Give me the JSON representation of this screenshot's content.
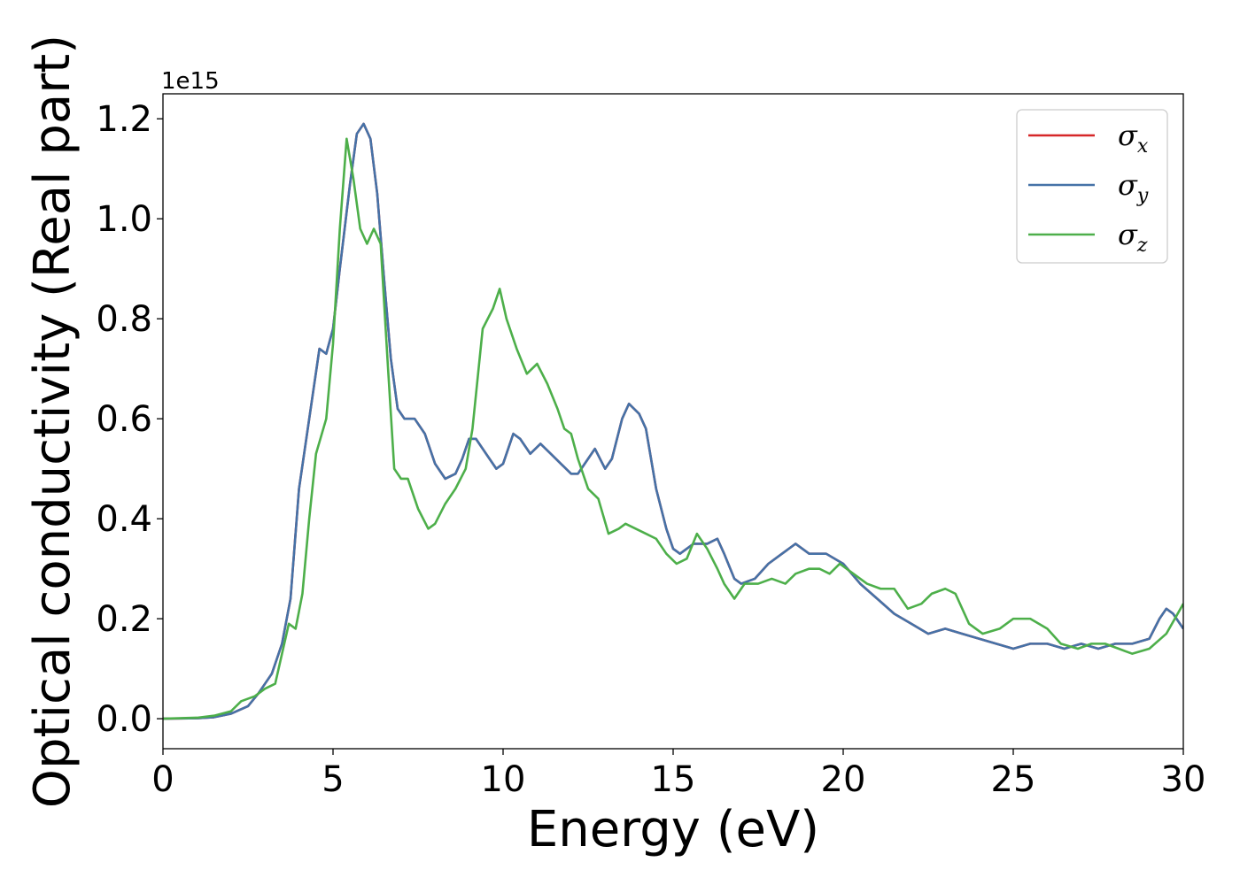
{
  "chart_data": {
    "type": "line",
    "title": "",
    "xlabel": "Energy (eV)",
    "ylabel": "Optical conductivity (Real part)",
    "y_offset_label": "1e15",
    "xlim": [
      0,
      30
    ],
    "ylim": [
      -0.06,
      1.25
    ],
    "x_ticks": [
      0,
      5,
      10,
      15,
      20,
      25,
      30
    ],
    "x_tick_labels": [
      "0",
      "5",
      "10",
      "15",
      "20",
      "25",
      "30"
    ],
    "y_ticks": [
      0.0,
      0.2,
      0.4,
      0.6,
      0.8,
      1.0,
      1.2
    ],
    "y_tick_labels": [
      "0.0",
      "0.2",
      "0.4",
      "0.6",
      "0.8",
      "1.0",
      "1.2"
    ],
    "grid": false,
    "legend_position": "top-right",
    "series": [
      {
        "name": "σx",
        "legend_base": "σ",
        "legend_sub": "x",
        "color": "#d62728",
        "points": [
          [
            0,
            0
          ],
          [
            1,
            0.001
          ],
          [
            1.5,
            0.003
          ],
          [
            2,
            0.01
          ],
          [
            2.5,
            0.025
          ],
          [
            2.8,
            0.05
          ],
          [
            3,
            0.07
          ],
          [
            3.2,
            0.09
          ],
          [
            3.5,
            0.15
          ],
          [
            3.75,
            0.24
          ],
          [
            4,
            0.46
          ],
          [
            4.3,
            0.6
          ],
          [
            4.6,
            0.74
          ],
          [
            4.8,
            0.73
          ],
          [
            5,
            0.78
          ],
          [
            5.2,
            0.9
          ],
          [
            5.5,
            1.07
          ],
          [
            5.7,
            1.17
          ],
          [
            5.9,
            1.19
          ],
          [
            6.1,
            1.16
          ],
          [
            6.3,
            1.05
          ],
          [
            6.5,
            0.88
          ],
          [
            6.7,
            0.72
          ],
          [
            6.9,
            0.62
          ],
          [
            7.1,
            0.6
          ],
          [
            7.4,
            0.6
          ],
          [
            7.7,
            0.57
          ],
          [
            8,
            0.51
          ],
          [
            8.3,
            0.48
          ],
          [
            8.6,
            0.49
          ],
          [
            8.8,
            0.52
          ],
          [
            9,
            0.56
          ],
          [
            9.2,
            0.56
          ],
          [
            9.5,
            0.53
          ],
          [
            9.8,
            0.5
          ],
          [
            10,
            0.51
          ],
          [
            10.3,
            0.57
          ],
          [
            10.5,
            0.56
          ],
          [
            10.8,
            0.53
          ],
          [
            11.1,
            0.55
          ],
          [
            11.4,
            0.53
          ],
          [
            11.7,
            0.51
          ],
          [
            12,
            0.49
          ],
          [
            12.2,
            0.49
          ],
          [
            12.5,
            0.52
          ],
          [
            12.7,
            0.54
          ],
          [
            13,
            0.5
          ],
          [
            13.2,
            0.52
          ],
          [
            13.5,
            0.6
          ],
          [
            13.7,
            0.63
          ],
          [
            14,
            0.61
          ],
          [
            14.2,
            0.58
          ],
          [
            14.5,
            0.46
          ],
          [
            14.8,
            0.38
          ],
          [
            15,
            0.34
          ],
          [
            15.2,
            0.33
          ],
          [
            15.6,
            0.35
          ],
          [
            16,
            0.35
          ],
          [
            16.3,
            0.36
          ],
          [
            16.5,
            0.33
          ],
          [
            16.8,
            0.28
          ],
          [
            17,
            0.27
          ],
          [
            17.4,
            0.28
          ],
          [
            17.8,
            0.31
          ],
          [
            18.2,
            0.33
          ],
          [
            18.6,
            0.35
          ],
          [
            19,
            0.33
          ],
          [
            19.5,
            0.33
          ],
          [
            20,
            0.31
          ],
          [
            20.5,
            0.27
          ],
          [
            21,
            0.24
          ],
          [
            21.5,
            0.21
          ],
          [
            22,
            0.19
          ],
          [
            22.5,
            0.17
          ],
          [
            23,
            0.18
          ],
          [
            23.5,
            0.17
          ],
          [
            24,
            0.16
          ],
          [
            24.5,
            0.15
          ],
          [
            25,
            0.14
          ],
          [
            25.5,
            0.15
          ],
          [
            26,
            0.15
          ],
          [
            26.5,
            0.14
          ],
          [
            27,
            0.15
          ],
          [
            27.5,
            0.14
          ],
          [
            28,
            0.15
          ],
          [
            28.5,
            0.15
          ],
          [
            29,
            0.16
          ],
          [
            29.3,
            0.2
          ],
          [
            29.5,
            0.22
          ],
          [
            29.7,
            0.21
          ],
          [
            30,
            0.18
          ]
        ]
      },
      {
        "name": "σy",
        "legend_base": "σ",
        "legend_sub": "y",
        "color": "#4572a7",
        "points": [
          [
            0,
            0
          ],
          [
            1,
            0.001
          ],
          [
            1.5,
            0.003
          ],
          [
            2,
            0.01
          ],
          [
            2.5,
            0.025
          ],
          [
            2.8,
            0.05
          ],
          [
            3,
            0.07
          ],
          [
            3.2,
            0.09
          ],
          [
            3.5,
            0.15
          ],
          [
            3.75,
            0.24
          ],
          [
            4,
            0.46
          ],
          [
            4.3,
            0.6
          ],
          [
            4.6,
            0.74
          ],
          [
            4.8,
            0.73
          ],
          [
            5,
            0.78
          ],
          [
            5.2,
            0.9
          ],
          [
            5.5,
            1.07
          ],
          [
            5.7,
            1.17
          ],
          [
            5.9,
            1.19
          ],
          [
            6.1,
            1.16
          ],
          [
            6.3,
            1.05
          ],
          [
            6.5,
            0.88
          ],
          [
            6.7,
            0.72
          ],
          [
            6.9,
            0.62
          ],
          [
            7.1,
            0.6
          ],
          [
            7.4,
            0.6
          ],
          [
            7.7,
            0.57
          ],
          [
            8,
            0.51
          ],
          [
            8.3,
            0.48
          ],
          [
            8.6,
            0.49
          ],
          [
            8.8,
            0.52
          ],
          [
            9,
            0.56
          ],
          [
            9.2,
            0.56
          ],
          [
            9.5,
            0.53
          ],
          [
            9.8,
            0.5
          ],
          [
            10,
            0.51
          ],
          [
            10.3,
            0.57
          ],
          [
            10.5,
            0.56
          ],
          [
            10.8,
            0.53
          ],
          [
            11.1,
            0.55
          ],
          [
            11.4,
            0.53
          ],
          [
            11.7,
            0.51
          ],
          [
            12,
            0.49
          ],
          [
            12.2,
            0.49
          ],
          [
            12.5,
            0.52
          ],
          [
            12.7,
            0.54
          ],
          [
            13,
            0.5
          ],
          [
            13.2,
            0.52
          ],
          [
            13.5,
            0.6
          ],
          [
            13.7,
            0.63
          ],
          [
            14,
            0.61
          ],
          [
            14.2,
            0.58
          ],
          [
            14.5,
            0.46
          ],
          [
            14.8,
            0.38
          ],
          [
            15,
            0.34
          ],
          [
            15.2,
            0.33
          ],
          [
            15.6,
            0.35
          ],
          [
            16,
            0.35
          ],
          [
            16.3,
            0.36
          ],
          [
            16.5,
            0.33
          ],
          [
            16.8,
            0.28
          ],
          [
            17,
            0.27
          ],
          [
            17.4,
            0.28
          ],
          [
            17.8,
            0.31
          ],
          [
            18.2,
            0.33
          ],
          [
            18.6,
            0.35
          ],
          [
            19,
            0.33
          ],
          [
            19.5,
            0.33
          ],
          [
            20,
            0.31
          ],
          [
            20.5,
            0.27
          ],
          [
            21,
            0.24
          ],
          [
            21.5,
            0.21
          ],
          [
            22,
            0.19
          ],
          [
            22.5,
            0.17
          ],
          [
            23,
            0.18
          ],
          [
            23.5,
            0.17
          ],
          [
            24,
            0.16
          ],
          [
            24.5,
            0.15
          ],
          [
            25,
            0.14
          ],
          [
            25.5,
            0.15
          ],
          [
            26,
            0.15
          ],
          [
            26.5,
            0.14
          ],
          [
            27,
            0.15
          ],
          [
            27.5,
            0.14
          ],
          [
            28,
            0.15
          ],
          [
            28.5,
            0.15
          ],
          [
            29,
            0.16
          ],
          [
            29.3,
            0.2
          ],
          [
            29.5,
            0.22
          ],
          [
            29.7,
            0.21
          ],
          [
            30,
            0.18
          ]
        ]
      },
      {
        "name": "σz",
        "legend_base": "σ",
        "legend_sub": "z",
        "color": "#4daf4a",
        "points": [
          [
            0,
            0
          ],
          [
            1,
            0.002
          ],
          [
            1.5,
            0.006
          ],
          [
            2,
            0.015
          ],
          [
            2.3,
            0.035
          ],
          [
            2.7,
            0.045
          ],
          [
            3,
            0.06
          ],
          [
            3.3,
            0.07
          ],
          [
            3.5,
            0.13
          ],
          [
            3.7,
            0.19
          ],
          [
            3.9,
            0.18
          ],
          [
            4.1,
            0.25
          ],
          [
            4.3,
            0.4
          ],
          [
            4.5,
            0.53
          ],
          [
            4.8,
            0.6
          ],
          [
            5,
            0.75
          ],
          [
            5.2,
            0.98
          ],
          [
            5.4,
            1.16
          ],
          [
            5.6,
            1.08
          ],
          [
            5.8,
            0.98
          ],
          [
            6,
            0.95
          ],
          [
            6.2,
            0.98
          ],
          [
            6.4,
            0.95
          ],
          [
            6.6,
            0.72
          ],
          [
            6.8,
            0.5
          ],
          [
            7,
            0.48
          ],
          [
            7.2,
            0.48
          ],
          [
            7.5,
            0.42
          ],
          [
            7.8,
            0.38
          ],
          [
            8,
            0.39
          ],
          [
            8.3,
            0.43
          ],
          [
            8.6,
            0.46
          ],
          [
            8.9,
            0.5
          ],
          [
            9.1,
            0.58
          ],
          [
            9.4,
            0.78
          ],
          [
            9.7,
            0.82
          ],
          [
            9.9,
            0.86
          ],
          [
            10.1,
            0.8
          ],
          [
            10.4,
            0.74
          ],
          [
            10.7,
            0.69
          ],
          [
            11,
            0.71
          ],
          [
            11.3,
            0.67
          ],
          [
            11.6,
            0.62
          ],
          [
            11.8,
            0.58
          ],
          [
            12,
            0.57
          ],
          [
            12.2,
            0.52
          ],
          [
            12.5,
            0.46
          ],
          [
            12.8,
            0.44
          ],
          [
            13.1,
            0.37
          ],
          [
            13.4,
            0.38
          ],
          [
            13.6,
            0.39
          ],
          [
            13.9,
            0.38
          ],
          [
            14.2,
            0.37
          ],
          [
            14.5,
            0.36
          ],
          [
            14.8,
            0.33
          ],
          [
            15.1,
            0.31
          ],
          [
            15.4,
            0.32
          ],
          [
            15.7,
            0.37
          ],
          [
            16,
            0.34
          ],
          [
            16.3,
            0.3
          ],
          [
            16.5,
            0.27
          ],
          [
            16.8,
            0.24
          ],
          [
            17.1,
            0.27
          ],
          [
            17.5,
            0.27
          ],
          [
            17.9,
            0.28
          ],
          [
            18.3,
            0.27
          ],
          [
            18.6,
            0.29
          ],
          [
            19,
            0.3
          ],
          [
            19.3,
            0.3
          ],
          [
            19.6,
            0.29
          ],
          [
            19.9,
            0.31
          ],
          [
            20.3,
            0.29
          ],
          [
            20.7,
            0.27
          ],
          [
            21.1,
            0.26
          ],
          [
            21.5,
            0.26
          ],
          [
            21.9,
            0.22
          ],
          [
            22.3,
            0.23
          ],
          [
            22.6,
            0.25
          ],
          [
            23,
            0.26
          ],
          [
            23.3,
            0.25
          ],
          [
            23.7,
            0.19
          ],
          [
            24.1,
            0.17
          ],
          [
            24.6,
            0.18
          ],
          [
            25,
            0.2
          ],
          [
            25.5,
            0.2
          ],
          [
            26,
            0.18
          ],
          [
            26.4,
            0.15
          ],
          [
            26.9,
            0.14
          ],
          [
            27.3,
            0.15
          ],
          [
            27.7,
            0.15
          ],
          [
            28.1,
            0.14
          ],
          [
            28.5,
            0.13
          ],
          [
            29,
            0.14
          ],
          [
            29.5,
            0.17
          ],
          [
            30,
            0.23
          ]
        ]
      }
    ]
  }
}
